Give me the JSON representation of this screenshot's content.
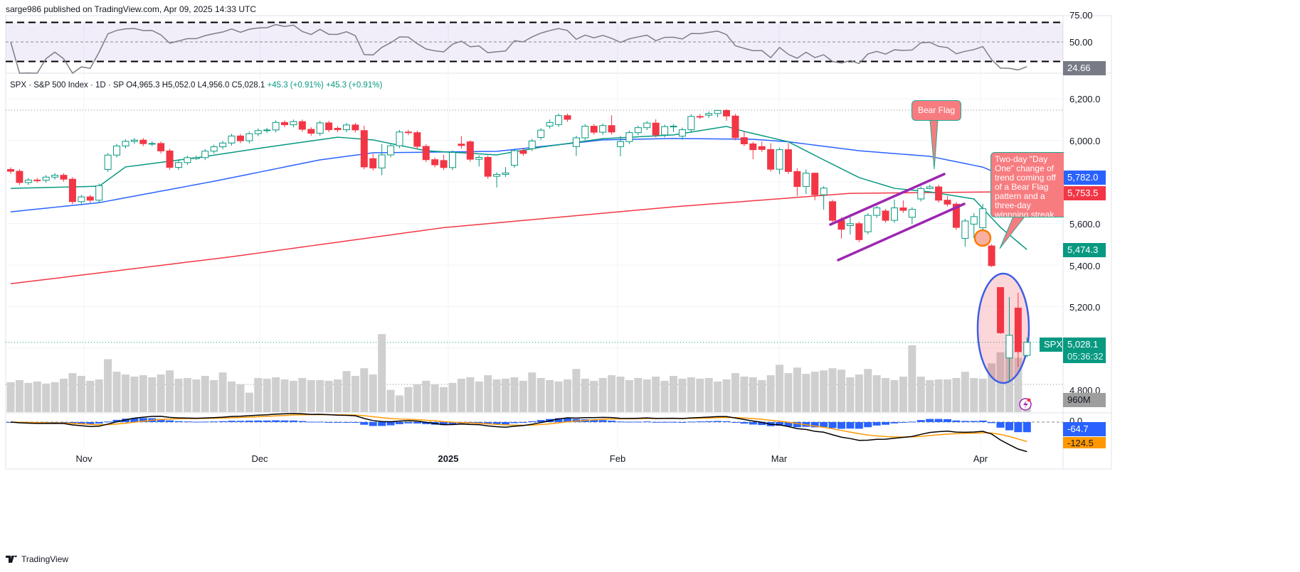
{
  "header": {
    "published": "sarge986 published on TradingView.com, Apr 09, 2025 14:33 UTC"
  },
  "legend": {
    "symbol": "SPX · S&P 500 Index · 1D · SP",
    "open": "O4,965.3",
    "high": "H5,052.0",
    "low": "L4,956.0",
    "close": "C5,028.1",
    "change": "+45.3 (+0.91%)",
    "change2": "+45.3 (+0.91%)"
  },
  "rsi_axis": {
    "top": "75.00",
    "mid": "50.00",
    "value": "24.66"
  },
  "price_axis": {
    "p6200": "6,200.0",
    "p6000": "6,000.0",
    "ma50": "5,782.0",
    "ma200": "5,753.5",
    "p5600": "5,600.0",
    "ma20": "5,474.3",
    "p5400": "5,400.0",
    "p5200": "5,200.0",
    "symbol_tag": "SPX",
    "last": "5,028.1",
    "countdown": "05:36:32",
    "p4800": "4,800.0",
    "volume": "960M"
  },
  "macd_axis": {
    "zero": "0.0",
    "hist": "-64.7",
    "signal": "-124.5"
  },
  "time_axis": [
    "Nov",
    "Dec",
    "2025",
    "Feb",
    "Mar",
    "Apr"
  ],
  "annotations": {
    "bear_flag": "Bear Flag",
    "day_one": "Two-day \"Day One\" change of trend coming off of a Bear Flag pattern and a three-day winnning streak"
  },
  "logo": "TradingView",
  "colors": {
    "up": "#089981",
    "down": "#f23645",
    "ma20": "#089981",
    "ma50": "#2962ff",
    "ma200": "#f23645",
    "volume": "#cfcfcf",
    "rsi": "#7e7e86",
    "macd": "#000000",
    "signal": "#ff9800",
    "hist": "#2962ff",
    "channel": "#9c27b0"
  },
  "chart_data": {
    "type": "candlestick",
    "title": "SPX · S&P 500 Index · 1D",
    "ylim": [
      4750,
      6300
    ],
    "month_starts": {
      "Nov": 8,
      "Dec": 28,
      "2025": 49,
      "Feb": 69,
      "Mar": 88,
      "Apr": 109
    },
    "open": [
      5860,
      5851,
      5797,
      5809,
      5808,
      5823,
      5832,
      5813,
      5705,
      5728,
      5712,
      5860,
      5929,
      5973,
      5995,
      6001,
      5984,
      5985,
      5949,
      5870,
      5893,
      5912,
      5917,
      5948,
      5969,
      5987,
      6021,
      5998,
      6032,
      6047,
      6050,
      6086,
      6075,
      6090,
      6053,
      6034,
      6084,
      6058,
      6051,
      6074,
      6047,
      5912,
      5867,
      5930,
      5974,
      6040,
      6037,
      5971,
      5907,
      5903,
      5869,
      5982,
      5993,
      5909,
      5918,
      5827,
      5836,
      5880,
      5950,
      5960,
      6014,
      6069,
      6076,
      6119,
      5970,
      6012,
      6068,
      6039,
      6071,
      5970,
      5994,
      6037,
      6061,
      6083,
      6026,
      6066,
      6020,
      6051,
      6115,
      6121,
      6129,
      6144,
      6117,
      6013,
      5983,
      5970,
      5956,
      5861,
      5955,
      5850,
      5778,
      5842,
      5738,
      5705,
      5615,
      5590,
      5599,
      5560,
      5639,
      5660,
      5615,
      5675,
      5630,
      5718,
      5768,
      5776,
      5712,
      5693,
      5528,
      5597,
      5580,
      5492,
      5292,
      4953,
      5193,
      4965.3
    ],
    "high": [
      5870,
      5861,
      5819,
      5819,
      5833,
      5842,
      5842,
      5823,
      5738,
      5738,
      5792,
      5939,
      5983,
      6005,
      6011,
      6011,
      5995,
      5995,
      5959,
      5903,
      5927,
      5927,
      5958,
      5979,
      5997,
      6031,
      6031,
      6042,
      6057,
      6060,
      6096,
      6096,
      6100,
      6100,
      6063,
      6094,
      6094,
      6068,
      6084,
      6084,
      6070,
      5935,
      5982,
      5984,
      6050,
      6050,
      6047,
      5981,
      5917,
      5930,
      5952,
      6021,
      6000,
      5928,
      5928,
      5846,
      5871,
      5960,
      5964,
      6007,
      6059,
      6100,
      6129,
      6129,
      6022,
      6078,
      6078,
      6081,
      6120,
      6022,
      6047,
      6071,
      6093,
      6101,
      6076,
      6078,
      6061,
      6125,
      6127,
      6139,
      6147,
      6150,
      6127,
      6043,
      5993,
      5994,
      5986,
      5965,
      5987,
      5865,
      5860,
      5845,
      5780,
      5715,
      5630,
      5645,
      5609,
      5649,
      5685,
      5670,
      5715,
      5711,
      5678,
      5778,
      5786,
      5786,
      5732,
      5703,
      5622,
      5650,
      5695,
      5500,
      5292,
      5246,
      5267,
      5052
    ],
    "low": [
      5839,
      5785,
      5785,
      5796,
      5796,
      5811,
      5801,
      5693,
      5693,
      5700,
      5700,
      5848,
      5917,
      5961,
      5983,
      5972,
      5972,
      5937,
      5858,
      5858,
      5881,
      5905,
      5905,
      5936,
      5957,
      5975,
      5986,
      5986,
      6020,
      6035,
      6038,
      6063,
      6063,
      6041,
      6022,
      6022,
      6039,
      6039,
      6039,
      6038,
      5860,
      5855,
      5832,
      5918,
      5962,
      6025,
      5959,
      5895,
      5870,
      5857,
      5857,
      5960,
      5897,
      5874,
      5815,
      5773,
      5824,
      5868,
      5925,
      5948,
      6002,
      6057,
      6064,
      6089,
      5925,
      6000,
      6027,
      6027,
      6028,
      5923,
      5982,
      6025,
      6049,
      6014,
      6014,
      6040,
      6003,
      6039,
      6102,
      6109,
      6111,
      6094,
      6001,
      5971,
      5909,
      5944,
      5849,
      5837,
      5838,
      5732,
      5742,
      5712,
      5666,
      5603,
      5528,
      5547,
      5510,
      5548,
      5627,
      5603,
      5603,
      5651,
      5597,
      5706,
      5764,
      5700,
      5682,
      5569,
      5488,
      5530,
      5568,
      5390,
      5069,
      4835,
      4910,
      4956
    ],
    "close": [
      5851,
      5797,
      5809,
      5808,
      5823,
      5832,
      5813,
      5705,
      5728,
      5712,
      5782,
      5929,
      5973,
      5995,
      6001,
      5984,
      5985,
      5949,
      5870,
      5893,
      5917,
      5917,
      5948,
      5969,
      5987,
      6021,
      5998,
      6032,
      6047,
      6050,
      6086,
      6075,
      6090,
      6053,
      6034,
      6084,
      6051,
      6051,
      6074,
      6050,
      5872,
      5867,
      5930,
      5974,
      6040,
      6037,
      5971,
      5907,
      5882,
      5869,
      5942,
      5975,
      5909,
      5918,
      5827,
      5836,
      5843,
      5950,
      5937,
      5997,
      6049,
      6086,
      6119,
      6101,
      6012,
      6068,
      6039,
      6071,
      6040,
      5994,
      6037,
      6061,
      6083,
      6026,
      6066,
      6068,
      6051,
      6115,
      6114,
      6129,
      6144,
      6117,
      6013,
      5983,
      5955,
      5956,
      5861,
      5955,
      5850,
      5778,
      5842,
      5738,
      5770,
      5615,
      5572,
      5599,
      5522,
      5639,
      5675,
      5615,
      5675,
      5663,
      5668,
      5768,
      5776,
      5712,
      5693,
      5581,
      5612,
      5633,
      5671,
      5397,
      5074,
      5062,
      4983,
      5028.1
    ],
    "volume_billions": [
      4.3,
      4.6,
      4.2,
      4.4,
      4.1,
      4.3,
      4.8,
      5.6,
      5.2,
      4.5,
      4.7,
      7.6,
      5.8,
      5.4,
      5.1,
      5.3,
      5.0,
      5.4,
      6.0,
      4.8,
      4.9,
      4.7,
      5.2,
      4.6,
      5.7,
      4.4,
      4.0,
      2.8,
      4.9,
      4.8,
      5.0,
      4.7,
      4.5,
      4.9,
      4.6,
      4.6,
      4.5,
      4.7,
      5.9,
      5.2,
      6.3,
      5.4,
      11.2,
      3.2,
      2.4,
      3.6,
      4.0,
      4.5,
      4.0,
      3.6,
      4.2,
      4.8,
      5.0,
      4.4,
      5.3,
      4.7,
      4.8,
      5.0,
      4.5,
      5.7,
      4.9,
      4.6,
      4.4,
      4.7,
      6.2,
      4.8,
      4.5,
      4.9,
      5.3,
      5.1,
      4.6,
      4.9,
      4.7,
      5.1,
      4.5,
      5.2,
      4.8,
      5.0,
      4.8,
      4.9,
      4.4,
      4.7,
      5.6,
      5.1,
      5.0,
      4.6,
      5.3,
      6.8,
      5.6,
      6.4,
      5.5,
      5.8,
      6.0,
      6.3,
      6.1,
      5.0,
      5.4,
      6.2,
      5.3,
      4.9,
      4.6,
      5.1,
      9.6,
      5.1,
      4.6,
      4.7,
      4.7,
      4.9,
      5.8,
      4.9,
      4.8,
      7.0,
      8.6,
      8.9,
      7.8,
      0.96
    ],
    "ma20": [
      [
        0,
        5769
      ],
      [
        10,
        5779
      ],
      [
        13,
        5872
      ],
      [
        21,
        5916
      ],
      [
        29,
        5967
      ],
      [
        37,
        6015
      ],
      [
        41,
        6002
      ],
      [
        47,
        5950
      ],
      [
        55,
        5930
      ],
      [
        60,
        5967
      ],
      [
        67,
        6008
      ],
      [
        75,
        6026
      ],
      [
        81,
        6067
      ],
      [
        83,
        6043
      ],
      [
        88,
        5993
      ],
      [
        92,
        5906
      ],
      [
        96,
        5821
      ],
      [
        100,
        5769
      ],
      [
        104,
        5752
      ],
      [
        109,
        5718
      ],
      [
        112,
        5581
      ],
      [
        115,
        5474.3
      ]
    ],
    "ma50": [
      [
        0,
        5656
      ],
      [
        10,
        5700
      ],
      [
        23,
        5803
      ],
      [
        35,
        5906
      ],
      [
        41,
        5940
      ],
      [
        55,
        5947
      ],
      [
        67,
        6002
      ],
      [
        75,
        6009
      ],
      [
        84,
        6005
      ],
      [
        88,
        5993
      ],
      [
        96,
        5950
      ],
      [
        104,
        5923
      ],
      [
        110,
        5871
      ],
      [
        115,
        5782
      ]
    ],
    "ma200": [
      [
        0,
        5310
      ],
      [
        25,
        5440
      ],
      [
        49,
        5580
      ],
      [
        75,
        5680
      ],
      [
        95,
        5745
      ],
      [
        115,
        5753.5
      ]
    ],
    "rsi_levels": [
      70,
      50,
      30
    ],
    "rsi_last": 24.66,
    "macd_last": {
      "histogram": -64.7,
      "signal": -124.5
    }
  }
}
